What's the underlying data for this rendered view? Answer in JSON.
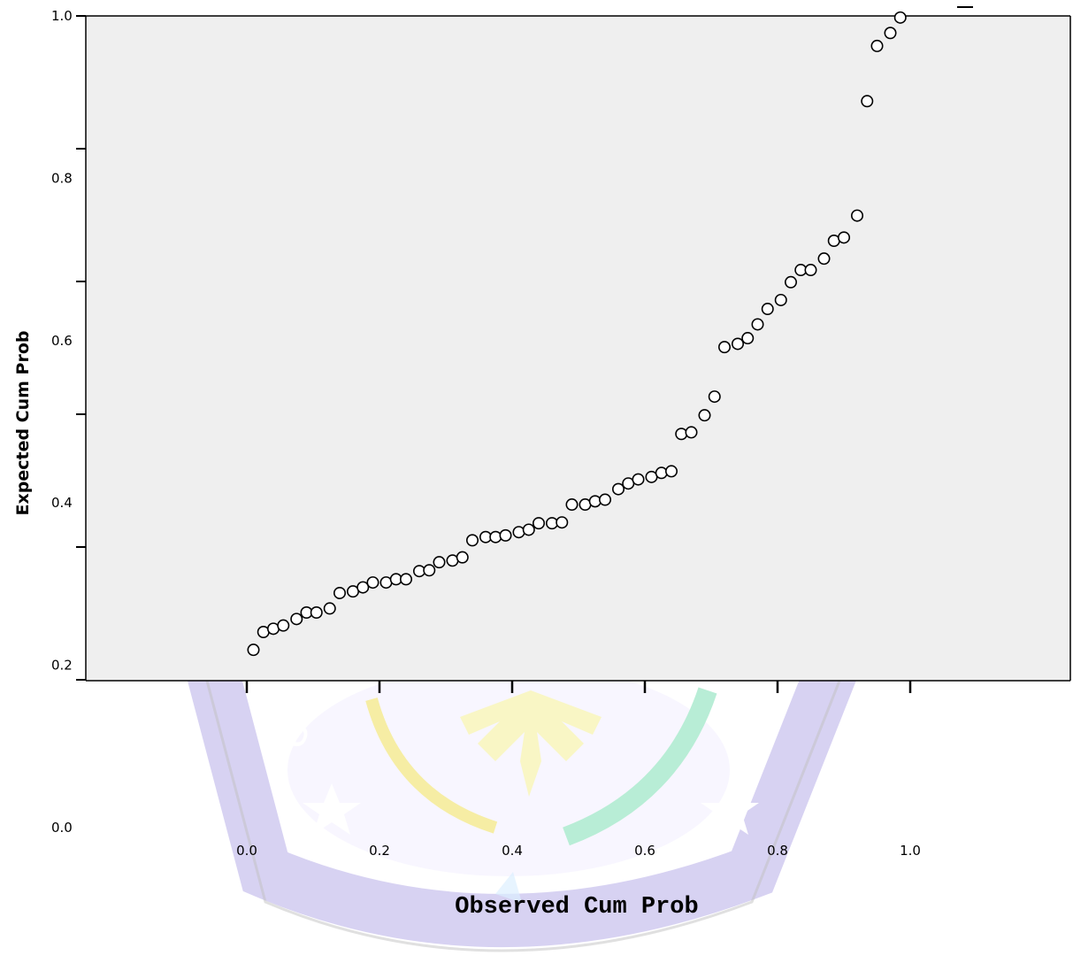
{
  "chart_data": {
    "type": "scatter",
    "title": "",
    "xlabel": "Observed Cum Prob",
    "ylabel": "Expected Cum Prob",
    "x_ticks": [
      "0.0",
      "0.2",
      "0.4",
      "0.6",
      "0.8",
      "1.0"
    ],
    "y_ticks": [
      "0.0",
      "0.2",
      "0.4",
      "0.6",
      "0.8",
      "1.0"
    ],
    "xlim": [
      -0.25,
      1.24
    ],
    "ylim": [
      0.0,
      1.0
    ],
    "grid": false,
    "colors": {
      "plot_bg": "#efefef",
      "marker_stroke": "#000000",
      "marker_fill": "#ffffff"
    },
    "points": [
      [
        0.01,
        0.219
      ],
      [
        0.025,
        0.241
      ],
      [
        0.04,
        0.245
      ],
      [
        0.055,
        0.249
      ],
      [
        0.075,
        0.257
      ],
      [
        0.09,
        0.265
      ],
      [
        0.105,
        0.265
      ],
      [
        0.125,
        0.27
      ],
      [
        0.14,
        0.289
      ],
      [
        0.16,
        0.291
      ],
      [
        0.175,
        0.296
      ],
      [
        0.19,
        0.302
      ],
      [
        0.21,
        0.302
      ],
      [
        0.225,
        0.306
      ],
      [
        0.24,
        0.306
      ],
      [
        0.26,
        0.316
      ],
      [
        0.275,
        0.317
      ],
      [
        0.29,
        0.327
      ],
      [
        0.31,
        0.329
      ],
      [
        0.325,
        0.333
      ],
      [
        0.34,
        0.354
      ],
      [
        0.36,
        0.358
      ],
      [
        0.375,
        0.358
      ],
      [
        0.39,
        0.36
      ],
      [
        0.41,
        0.364
      ],
      [
        0.425,
        0.367
      ],
      [
        0.44,
        0.375
      ],
      [
        0.46,
        0.375
      ],
      [
        0.475,
        0.376
      ],
      [
        0.49,
        0.398
      ],
      [
        0.51,
        0.398
      ],
      [
        0.525,
        0.402
      ],
      [
        0.54,
        0.404
      ],
      [
        0.56,
        0.417
      ],
      [
        0.575,
        0.424
      ],
      [
        0.59,
        0.429
      ],
      [
        0.61,
        0.432
      ],
      [
        0.625,
        0.437
      ],
      [
        0.64,
        0.439
      ],
      [
        0.655,
        0.485
      ],
      [
        0.67,
        0.487
      ],
      [
        0.69,
        0.508
      ],
      [
        0.705,
        0.531
      ],
      [
        0.72,
        0.592
      ],
      [
        0.74,
        0.596
      ],
      [
        0.755,
        0.603
      ],
      [
        0.77,
        0.62
      ],
      [
        0.785,
        0.639
      ],
      [
        0.805,
        0.65
      ],
      [
        0.82,
        0.672
      ],
      [
        0.835,
        0.687
      ],
      [
        0.85,
        0.687
      ],
      [
        0.87,
        0.701
      ],
      [
        0.885,
        0.723
      ],
      [
        0.9,
        0.727
      ],
      [
        0.92,
        0.754
      ],
      [
        0.935,
        0.895
      ],
      [
        0.95,
        0.963
      ],
      [
        0.97,
        0.979
      ],
      [
        0.985,
        0.998
      ]
    ]
  }
}
